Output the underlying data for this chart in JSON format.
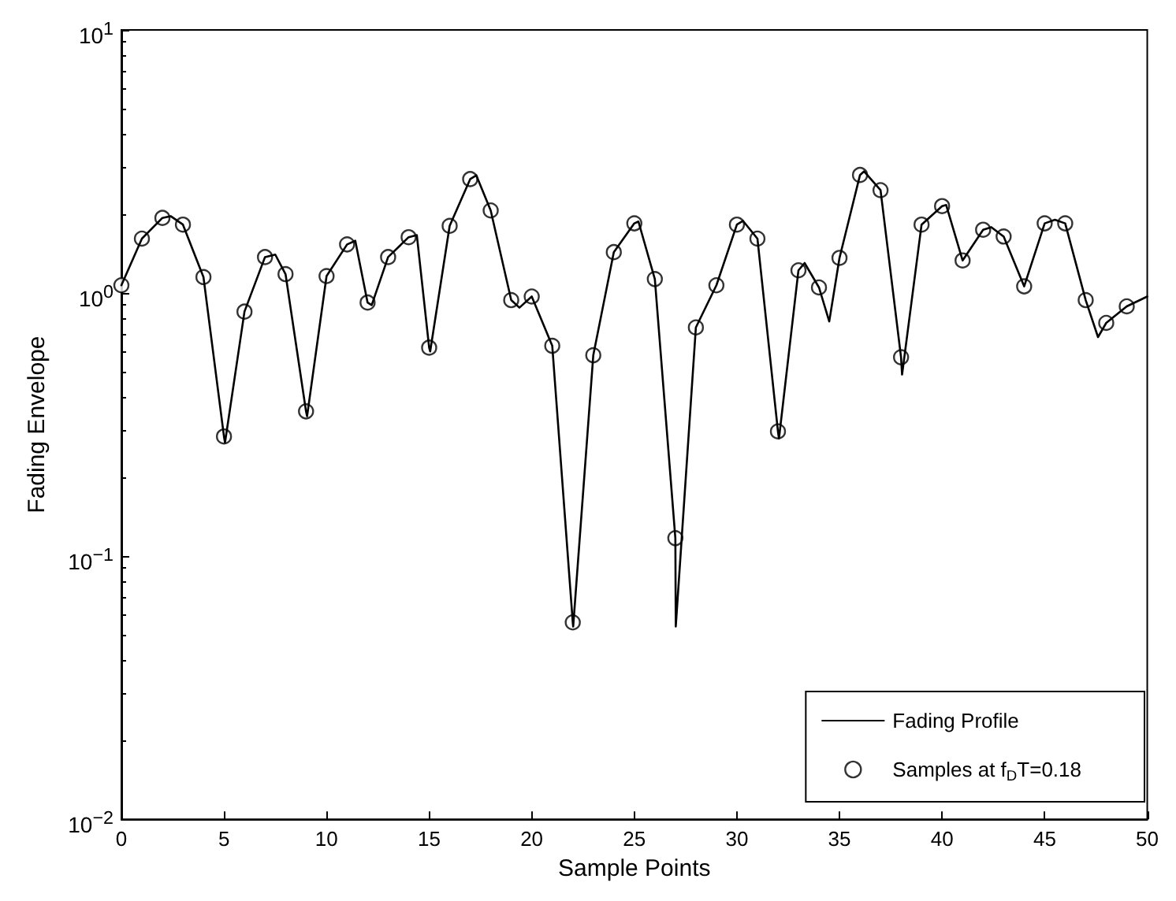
{
  "chart_data": {
    "type": "line",
    "xlabel": "Sample Points",
    "ylabel": "Fading Envelope",
    "log": "y",
    "grid": false,
    "legend": "bottom right",
    "xlim": [
      0,
      50
    ],
    "xticks": [
      0,
      5,
      10,
      15,
      20,
      25,
      30,
      35,
      40,
      45,
      50
    ],
    "ylim": [
      0.01,
      10
    ],
    "yticks": [
      {
        "value": 0.01,
        "label": "10$^{−2}$"
      },
      {
        "value": 0.1,
        "label": "10$^{−1}$"
      },
      {
        "value": 1,
        "label": "10$^{0}$"
      },
      {
        "value": 10,
        "label": "10$^{1}$"
      }
    ],
    "series": [
      {
        "name": "Fading Profile",
        "marker": "none",
        "line_style": "solid",
        "color": "#000000",
        "x": [
          0,
          1,
          2,
          2.4,
          3,
          4,
          5,
          5.05,
          6,
          7,
          7.5,
          8,
          9,
          9.05,
          10,
          11,
          11.4,
          12,
          12.2,
          13,
          14,
          14.4,
          15,
          15.05,
          16,
          17,
          17.3,
          18,
          19,
          19.4,
          20,
          21,
          22,
          22.02,
          23,
          24,
          25,
          25.2,
          26,
          27,
          27.02,
          28,
          29,
          30,
          30.3,
          31,
          32,
          32.05,
          33,
          33.3,
          34,
          34.5,
          35,
          36,
          36.2,
          37,
          38,
          38.05,
          39,
          40,
          40.2,
          41,
          42,
          42.4,
          43,
          44,
          45,
          45.5,
          46,
          47,
          47.6,
          48,
          49,
          50
        ],
        "values": [
          1.07,
          1.61,
          1.93,
          1.96,
          1.82,
          1.15,
          0.285,
          0.27,
          0.85,
          1.37,
          1.4,
          1.18,
          0.355,
          0.34,
          1.16,
          1.53,
          1.58,
          0.92,
          0.9,
          1.37,
          1.63,
          1.66,
          0.62,
          0.6,
          1.8,
          2.71,
          2.8,
          2.06,
          0.94,
          0.88,
          0.97,
          0.63,
          0.056,
          0.054,
          0.58,
          1.43,
          1.84,
          1.87,
          1.13,
          0.117,
          0.054,
          0.74,
          1.07,
          1.82,
          1.88,
          1.61,
          0.298,
          0.28,
          1.22,
          1.3,
          1.05,
          0.78,
          1.36,
          2.81,
          2.9,
          2.46,
          0.57,
          0.49,
          1.82,
          2.14,
          2.16,
          1.33,
          1.74,
          1.78,
          1.64,
          1.06,
          1.84,
          1.9,
          1.84,
          0.94,
          0.68,
          0.77,
          0.89,
          0.97
        ]
      },
      {
        "name": "Samples at f$_{D}$T=0.18",
        "type": "scatter",
        "marker": "circle",
        "color": "#000000",
        "x": [
          0,
          1,
          2,
          3,
          4,
          5,
          6,
          7,
          8,
          9,
          10,
          11,
          12,
          13,
          14,
          15,
          16,
          17,
          18,
          19,
          20,
          21,
          22,
          23,
          24,
          25,
          26,
          27,
          28,
          29,
          30,
          31,
          32,
          33,
          34,
          35,
          36,
          37,
          38,
          39,
          40,
          41,
          42,
          43,
          44,
          45,
          46,
          47,
          48,
          49
        ],
        "values": [
          1.07,
          1.61,
          1.93,
          1.82,
          1.15,
          0.285,
          0.85,
          1.37,
          1.18,
          0.355,
          1.16,
          1.53,
          0.92,
          1.37,
          1.63,
          0.62,
          1.8,
          2.71,
          2.06,
          0.94,
          0.97,
          0.63,
          0.056,
          0.58,
          1.43,
          1.84,
          1.13,
          0.117,
          0.74,
          1.07,
          1.82,
          1.61,
          0.298,
          1.22,
          1.05,
          1.36,
          2.81,
          2.46,
          0.57,
          1.82,
          2.14,
          1.33,
          1.74,
          1.64,
          1.06,
          1.84,
          1.84,
          0.94,
          0.77,
          0.89
        ]
      }
    ]
  }
}
